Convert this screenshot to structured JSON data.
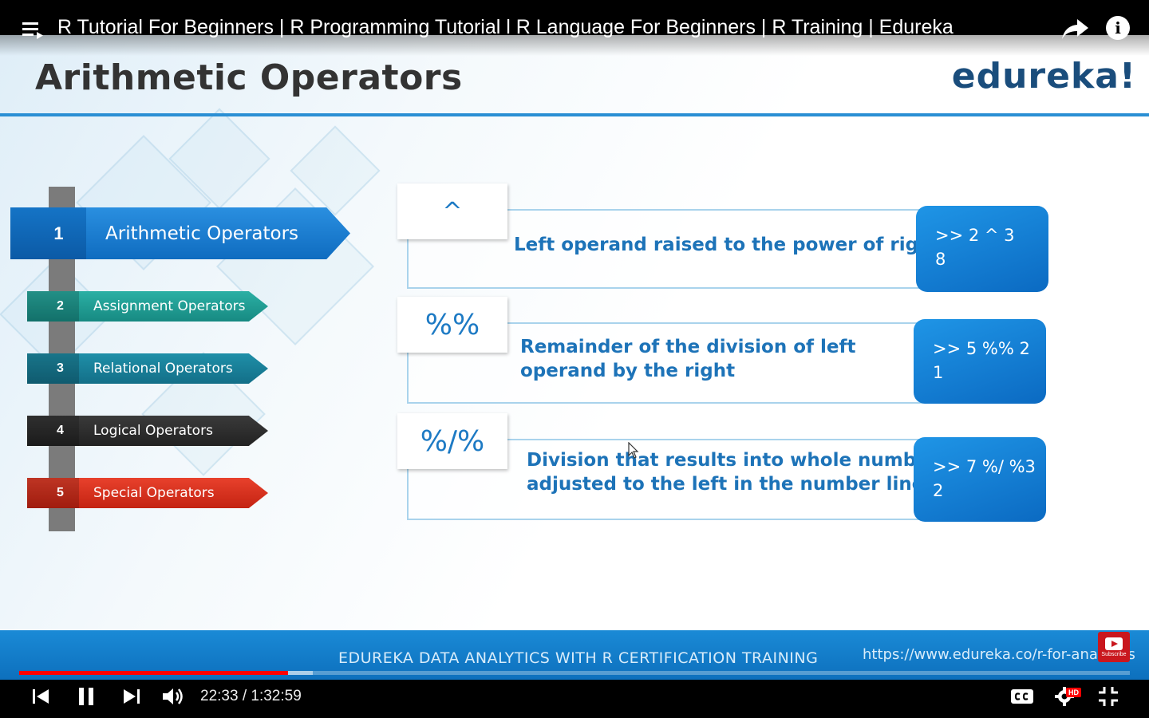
{
  "player": {
    "video_title": "R Tutorial For Beginners | R Programming Tutorial l R Language For Beginners | R Training | Edureka",
    "current_time": "22:33",
    "duration": "1:32:59",
    "time_display": "22:33 / 1:32:59",
    "progress_fraction": 0.2424,
    "buffered_fraction": 0.2646,
    "hd_badge": "HD",
    "accent_color": "#ff0000",
    "icons": [
      "playlist-icon",
      "share-icon",
      "info-icon",
      "previous-icon",
      "pause-icon",
      "next-icon",
      "volume-icon",
      "captions-icon",
      "settings-icon",
      "exit-fullscreen-icon"
    ]
  },
  "slide": {
    "title": "Arithmetic Operators",
    "logo": "edureka!",
    "menu": [
      {
        "number": "1",
        "label": "Arithmetic Operators",
        "color": "#1a7fd6"
      },
      {
        "number": "2",
        "label": "Assignment Operators",
        "color": "#1f9e94"
      },
      {
        "number": "3",
        "label": "Relational Operators",
        "color": "#187f98"
      },
      {
        "number": "4",
        "label": "Logical Operators",
        "color": "#2b2b2b"
      },
      {
        "number": "5",
        "label": "Special Operators",
        "color": "#d8301c"
      }
    ],
    "operators": [
      {
        "symbol": "^",
        "description": "Left operand raised to the power of right",
        "example_input": ">> 2 ^ 3",
        "example_output": "8"
      },
      {
        "symbol": "%%",
        "description_line1": "Remainder of the division of left",
        "description_line2": "operand by the right",
        "example_input": ">> 5 %% 2",
        "example_output": "1"
      },
      {
        "symbol": "%/%",
        "description_line1": "Division that results into whole number",
        "description_line2": "adjusted to the left in the number line",
        "example_input": ">> 7 %/ %3",
        "example_output": "2"
      }
    ],
    "banner_text": "EDUREKA DATA ANALYTICS WITH R CERTIFICATION TRAINING",
    "banner_url": "https://www.edureka.co/r-for-analytics",
    "subscribe_label": "Subscribe"
  }
}
